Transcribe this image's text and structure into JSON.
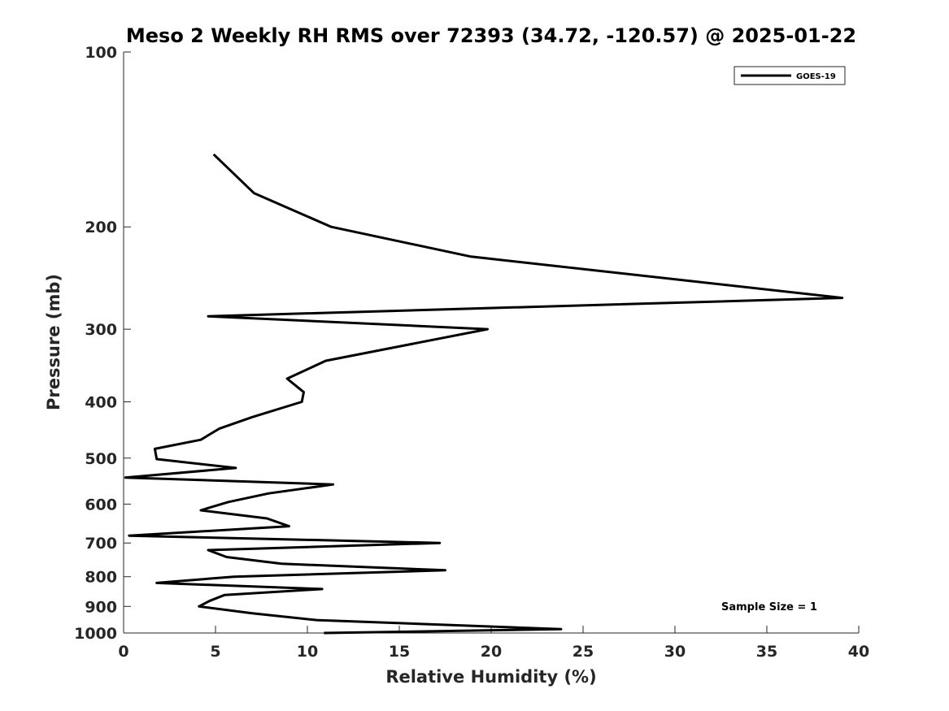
{
  "chart_data": {
    "type": "line",
    "title": "Meso 2 Weekly RH RMS over 72393 (34.72, -120.57) @ 2025-01-22",
    "xlabel": "Relative Humidity (%)",
    "ylabel": "Pressure (mb)",
    "xlim": [
      0,
      40
    ],
    "ylim": [
      100,
      1000
    ],
    "yscale": "log",
    "y_reversed": true,
    "x_ticks": [
      "0",
      "5",
      "10",
      "15",
      "20",
      "25",
      "30",
      "35",
      "40"
    ],
    "y_ticks": [
      "100",
      "200",
      "300",
      "400",
      "500",
      "600",
      "700",
      "800",
      "900",
      "1000"
    ],
    "grid": false,
    "legend_position": "top-right",
    "annotation": "Sample Size = 1",
    "series": [
      {
        "name": "GOES-19",
        "color": "#000000",
        "points": [
          {
            "x": 4.9,
            "p": 150
          },
          {
            "x": 7.1,
            "p": 175
          },
          {
            "x": 11.3,
            "p": 200
          },
          {
            "x": 18.9,
            "p": 225
          },
          {
            "x": 39.1,
            "p": 265
          },
          {
            "x": 4.6,
            "p": 285
          },
          {
            "x": 19.8,
            "p": 300
          },
          {
            "x": 11.0,
            "p": 340
          },
          {
            "x": 8.9,
            "p": 365
          },
          {
            "x": 9.8,
            "p": 385
          },
          {
            "x": 9.7,
            "p": 400
          },
          {
            "x": 7.0,
            "p": 425
          },
          {
            "x": 5.2,
            "p": 445
          },
          {
            "x": 4.2,
            "p": 465
          },
          {
            "x": 1.7,
            "p": 482
          },
          {
            "x": 1.8,
            "p": 502
          },
          {
            "x": 6.1,
            "p": 520
          },
          {
            "x": 0.1,
            "p": 540
          },
          {
            "x": 11.4,
            "p": 555
          },
          {
            "x": 7.9,
            "p": 575
          },
          {
            "x": 5.7,
            "p": 595
          },
          {
            "x": 4.2,
            "p": 615
          },
          {
            "x": 7.8,
            "p": 635
          },
          {
            "x": 9.0,
            "p": 655
          },
          {
            "x": 0.3,
            "p": 680
          },
          {
            "x": 17.2,
            "p": 700
          },
          {
            "x": 4.6,
            "p": 720
          },
          {
            "x": 5.6,
            "p": 740
          },
          {
            "x": 8.6,
            "p": 760
          },
          {
            "x": 17.5,
            "p": 780
          },
          {
            "x": 6.0,
            "p": 800
          },
          {
            "x": 1.8,
            "p": 820
          },
          {
            "x": 10.8,
            "p": 840
          },
          {
            "x": 5.5,
            "p": 860
          },
          {
            "x": 4.7,
            "p": 880
          },
          {
            "x": 4.1,
            "p": 900
          },
          {
            "x": 7.0,
            "p": 925
          },
          {
            "x": 10.5,
            "p": 950
          },
          {
            "x": 23.8,
            "p": 985
          },
          {
            "x": 10.9,
            "p": 1000
          }
        ]
      }
    ]
  }
}
